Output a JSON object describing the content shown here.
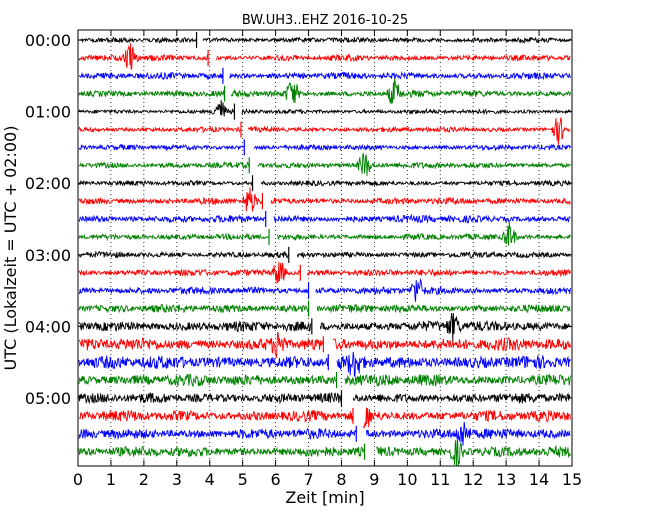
{
  "chart_data": {
    "type": "line",
    "title": "BW.UH3..EHZ 2016-10-25",
    "xlabel": "Zeit  [min]",
    "ylabel": "UTC (Lokalzeit = UTC + 02:00)",
    "xlim": [
      0,
      15
    ],
    "x_ticks": [
      "0",
      "1",
      "2",
      "3",
      "4",
      "5",
      "6",
      "7",
      "8",
      "9",
      "10",
      "11",
      "12",
      "13",
      "14",
      "15"
    ],
    "y_tick_labels": [
      "00:00",
      "01:00",
      "02:00",
      "03:00",
      "04:00",
      "05:00"
    ],
    "grid": "vertical dotted",
    "trace_interval_minutes": 15,
    "traces_count": 24,
    "color_cycle": [
      "#000000",
      "#ff0000",
      "#0000ff",
      "#008000"
    ],
    "amplitude_profile": [
      0.35,
      0.4,
      0.45,
      0.45,
      0.3,
      0.35,
      0.35,
      0.4,
      0.35,
      0.45,
      0.5,
      0.4,
      0.4,
      0.45,
      0.5,
      0.55,
      0.7,
      0.85,
      0.9,
      0.8,
      0.7,
      0.75,
      0.7,
      0.7
    ],
    "gaps": [
      {
        "trace": 0,
        "from": 3.6,
        "to": 3.8
      },
      {
        "trace": 1,
        "from": 3.95,
        "to": 4.2
      },
      {
        "trace": 2,
        "from": 4.4,
        "to": 4.6
      },
      {
        "trace": 3,
        "from": 4.45,
        "to": 4.65
      },
      {
        "trace": 4,
        "from": 4.75,
        "to": 4.95
      },
      {
        "trace": 5,
        "from": 4.95,
        "to": 5.15
      },
      {
        "trace": 6,
        "from": 5.05,
        "to": 5.35
      },
      {
        "trace": 7,
        "from": 5.2,
        "to": 5.45
      },
      {
        "trace": 8,
        "from": 5.3,
        "to": 5.55
      },
      {
        "trace": 9,
        "from": 5.6,
        "to": 5.85
      },
      {
        "trace": 10,
        "from": 5.7,
        "to": 5.95
      },
      {
        "trace": 11,
        "from": 5.8,
        "to": 6.05
      },
      {
        "trace": 12,
        "from": 6.4,
        "to": 6.65
      },
      {
        "trace": 13,
        "from": 6.75,
        "to": 6.95
      },
      {
        "trace": 14,
        "from": 7.0,
        "to": 7.2
      },
      {
        "trace": 15,
        "from": 7.0,
        "to": 7.25
      },
      {
        "trace": 16,
        "from": 7.1,
        "to": 7.35
      },
      {
        "trace": 17,
        "from": 7.45,
        "to": 7.75
      },
      {
        "trace": 18,
        "from": 7.6,
        "to": 7.85
      },
      {
        "trace": 19,
        "from": 7.85,
        "to": 8.1
      },
      {
        "trace": 20,
        "from": 8.0,
        "to": 8.35
      },
      {
        "trace": 21,
        "from": 8.35,
        "to": 8.65
      },
      {
        "trace": 22,
        "from": 8.45,
        "to": 8.75
      },
      {
        "trace": 23,
        "from": 8.7,
        "to": 9.05
      }
    ],
    "events": [
      {
        "trace": 1,
        "x": 1.6
      },
      {
        "trace": 3,
        "x": 6.5
      },
      {
        "trace": 3,
        "x": 9.6
      },
      {
        "trace": 4,
        "x": 4.3
      },
      {
        "trace": 5,
        "x": 14.6
      },
      {
        "trace": 7,
        "x": 8.7
      },
      {
        "trace": 9,
        "x": 5.2
      },
      {
        "trace": 11,
        "x": 13.1
      },
      {
        "trace": 13,
        "x": 6.1
      },
      {
        "trace": 14,
        "x": 10.3
      },
      {
        "trace": 16,
        "x": 11.4
      },
      {
        "trace": 17,
        "x": 6.1
      },
      {
        "trace": 18,
        "x": 8.4
      },
      {
        "trace": 21,
        "x": 8.7
      },
      {
        "trace": 22,
        "x": 11.7
      },
      {
        "trace": 23,
        "x": 11.5
      }
    ]
  }
}
